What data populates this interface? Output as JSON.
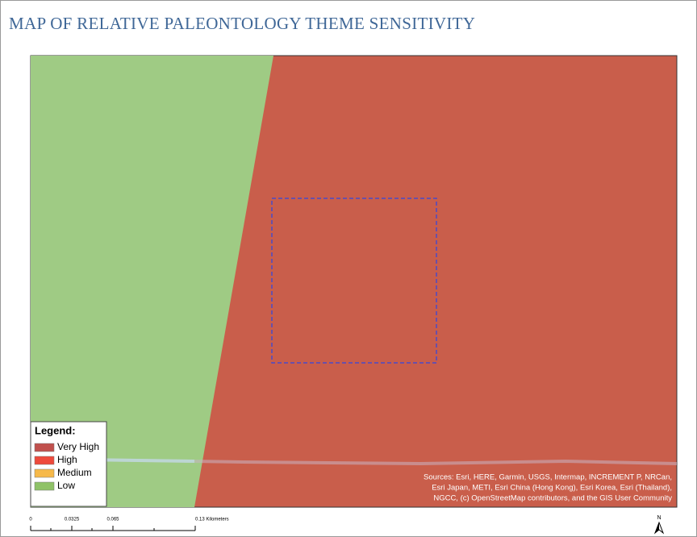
{
  "header": {
    "title": "MAP OF RELATIVE PALEONTOLOGY THEME SENSITIVITY"
  },
  "legend": {
    "title": "Legend:",
    "items": [
      {
        "label": "Very High",
        "color": "#c0504d"
      },
      {
        "label": "High",
        "color": "#ee4a3c"
      },
      {
        "label": "Medium",
        "color": "#f6b94a"
      },
      {
        "label": "Low",
        "color": "#8fc267"
      }
    ]
  },
  "attribution": {
    "lines": [
      "Sources: Esri, HERE, Garmin, USGS, Intermap, INCREMENT P, NRCan,",
      "Esri Japan, METI, Esri China (Hong Kong), Esri Korea, Esri (Thailand),",
      "NGCC, (c) OpenStreetMap contributors, and the GIS User Community"
    ]
  },
  "scale_bar": {
    "labels": [
      "0",
      "0.0325",
      "0.065",
      "0.13 Kilometers"
    ]
  },
  "north_arrow": {
    "label": "N"
  }
}
